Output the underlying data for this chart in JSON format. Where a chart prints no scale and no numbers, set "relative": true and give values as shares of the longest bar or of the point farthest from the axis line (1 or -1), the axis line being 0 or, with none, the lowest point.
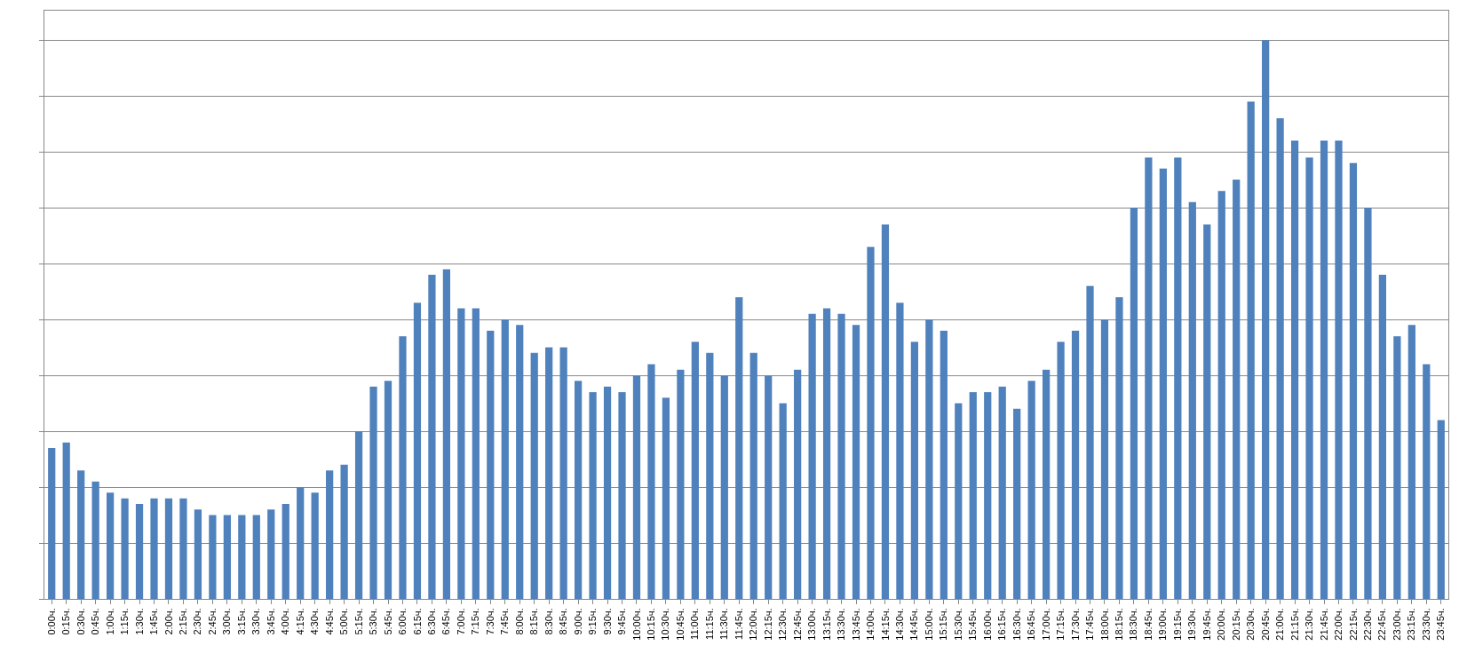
{
  "chart_data": {
    "type": "bar",
    "relative": true,
    "grid": "y",
    "color": "#4f81bd",
    "categories": [
      "0:00ч.",
      "0:15ч.",
      "0:30ч.",
      "0:45ч.",
      "1:00ч.",
      "1:15ч.",
      "1:30ч.",
      "1:45ч.",
      "2:00ч.",
      "2:15ч.",
      "2:30ч.",
      "2:45ч.",
      "3:00ч.",
      "3:15ч.",
      "3:30ч.",
      "3:45ч.",
      "4:00ч.",
      "4:15ч.",
      "4:30ч.",
      "4:45ч.",
      "5:00ч.",
      "5:15ч.",
      "5:30ч.",
      "5:45ч.",
      "6:00ч.",
      "6:15ч.",
      "6:30ч.",
      "6:45ч.",
      "7:00ч.",
      "7:15ч.",
      "7:30ч.",
      "7:45ч.",
      "8:00ч.",
      "8:15ч.",
      "8:30ч.",
      "8:45ч.",
      "9:00ч.",
      "9:15ч.",
      "9:30ч.",
      "9:45ч.",
      "10:00ч.",
      "10:15ч.",
      "10:30ч.",
      "10:45ч.",
      "11:00ч.",
      "11:15ч.",
      "11:30ч.",
      "11:45ч.",
      "12:00ч.",
      "12:15ч.",
      "12:30ч.",
      "12:45ч.",
      "13:00ч.",
      "13:15ч.",
      "13:30ч.",
      "13:45ч.",
      "14:00ч.",
      "14:15ч.",
      "14:30ч.",
      "14:45ч.",
      "15:00ч.",
      "15:15ч.",
      "15:30ч.",
      "15:45ч.",
      "16:00ч.",
      "16:15ч.",
      "16:30ч.",
      "16:45ч.",
      "17:00ч.",
      "17:15ч.",
      "17:30ч.",
      "17:45ч.",
      "18:00ч.",
      "18:15ч.",
      "18:30ч.",
      "18:45ч.",
      "19:00ч.",
      "19:15ч.",
      "19:30ч.",
      "19:45ч.",
      "20:00ч.",
      "20:15ч.",
      "20:30ч.",
      "20:45ч.",
      "21:00ч.",
      "21:15ч.",
      "21:30ч.",
      "21:45ч.",
      "22:00ч.",
      "22:15ч.",
      "22:30ч.",
      "22:45ч.",
      "23:00ч.",
      "23:15ч.",
      "23:30ч.",
      "23:45ч."
    ],
    "values": [
      0.27,
      0.28,
      0.23,
      0.21,
      0.19,
      0.18,
      0.17,
      0.18,
      0.18,
      0.18,
      0.16,
      0.15,
      0.15,
      0.15,
      0.15,
      0.16,
      0.17,
      0.2,
      0.19,
      0.23,
      0.24,
      0.3,
      0.38,
      0.39,
      0.47,
      0.53,
      0.58,
      0.59,
      0.52,
      0.52,
      0.48,
      0.5,
      0.49,
      0.44,
      0.45,
      0.45,
      0.39,
      0.37,
      0.38,
      0.37,
      0.4,
      0.42,
      0.36,
      0.41,
      0.46,
      0.44,
      0.4,
      0.54,
      0.44,
      0.4,
      0.35,
      0.41,
      0.51,
      0.52,
      0.51,
      0.49,
      0.63,
      0.67,
      0.53,
      0.46,
      0.5,
      0.48,
      0.35,
      0.37,
      0.37,
      0.38,
      0.34,
      0.39,
      0.41,
      0.46,
      0.48,
      0.56,
      0.5,
      0.54,
      0.7,
      0.79,
      0.77,
      0.79,
      0.71,
      0.67,
      0.73,
      0.75,
      0.89,
      1,
      0.86,
      0.82,
      0.79,
      0.82,
      0.82,
      0.78,
      0.7,
      0.58,
      0.47,
      0.49,
      0.42,
      0.32
    ]
  }
}
